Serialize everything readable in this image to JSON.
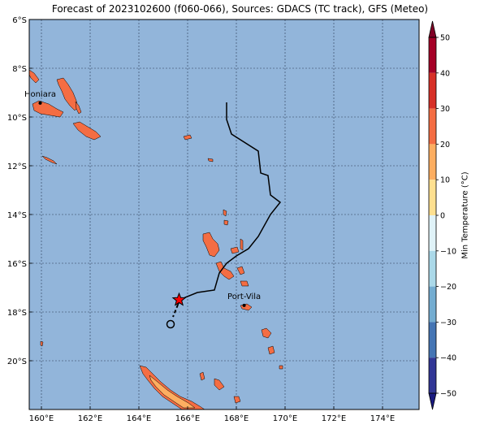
{
  "title": "Forecast of 2023102600 (f060-066), Sources: GDACS (TC track), GFS (Meteo)",
  "map": {
    "lon_range": [
      159.5,
      175.5
    ],
    "lat_range": [
      -22,
      -6
    ],
    "lon_ticks": [
      "160°E",
      "162°E",
      "164°E",
      "166°E",
      "168°E",
      "170°E",
      "172°E",
      "174°E"
    ],
    "lat_ticks": [
      "6°S",
      "8°S",
      "10°S",
      "12°S",
      "14°S",
      "16°S",
      "18°S",
      "20°S"
    ],
    "gridlines": true,
    "ocean_color": "#92b5da",
    "land_color": "#f46d43",
    "cities": [
      {
        "name": "Honiara",
        "lon": 159.95,
        "lat": -9.43
      },
      {
        "name": "Port-Vila",
        "lon": 168.32,
        "lat": -17.73
      }
    ],
    "tc_track": [
      [
        167.6,
        -9.4
      ],
      [
        167.6,
        -10.1
      ],
      [
        167.8,
        -10.7
      ],
      [
        168.9,
        -11.4
      ],
      [
        169.0,
        -12.3
      ],
      [
        169.3,
        -12.4
      ],
      [
        169.4,
        -13.2
      ],
      [
        169.8,
        -13.5
      ],
      [
        169.4,
        -14.0
      ],
      [
        168.9,
        -14.9
      ],
      [
        168.5,
        -15.4
      ],
      [
        168.0,
        -15.7
      ],
      [
        167.6,
        -16.0
      ],
      [
        167.3,
        -16.4
      ],
      [
        167.1,
        -17.1
      ],
      [
        166.4,
        -17.2
      ],
      [
        165.9,
        -17.4
      ],
      [
        165.7,
        -17.5
      ],
      [
        165.6,
        -17.7
      ]
    ],
    "tc_track_dashed": [
      [
        165.6,
        -17.7
      ],
      [
        165.4,
        -18.2
      ]
    ],
    "tc_current_position": {
      "lon": 165.65,
      "lat": -17.5,
      "color": "#ff0000"
    },
    "tc_forecast_end": {
      "lon": 165.3,
      "lat": -18.5
    }
  },
  "colorbar": {
    "label": "Min Temperature (°C)",
    "ticks": [
      "50",
      "40",
      "30",
      "20",
      "10",
      "0",
      "−10",
      "−20",
      "−30",
      "−40",
      "−50"
    ],
    "levels": [
      {
        "range": [
          40,
          50
        ],
        "color": "#a50026"
      },
      {
        "range": [
          30,
          40
        ],
        "color": "#d73027"
      },
      {
        "range": [
          20,
          30
        ],
        "color": "#f46d43"
      },
      {
        "range": [
          10,
          20
        ],
        "color": "#fdae61"
      },
      {
        "range": [
          0,
          10
        ],
        "color": "#fee090"
      },
      {
        "range": [
          -10,
          0
        ],
        "color": "#e0f3f8"
      },
      {
        "range": [
          -20,
          -10
        ],
        "color": "#abd9e9"
      },
      {
        "range": [
          -30,
          -20
        ],
        "color": "#74add1"
      },
      {
        "range": [
          -40,
          -30
        ],
        "color": "#4575b4"
      },
      {
        "range": [
          -50,
          -40
        ],
        "color": "#313695"
      }
    ],
    "extend_max_color": "#800026",
    "extend_min_color": "#1a1a80"
  }
}
